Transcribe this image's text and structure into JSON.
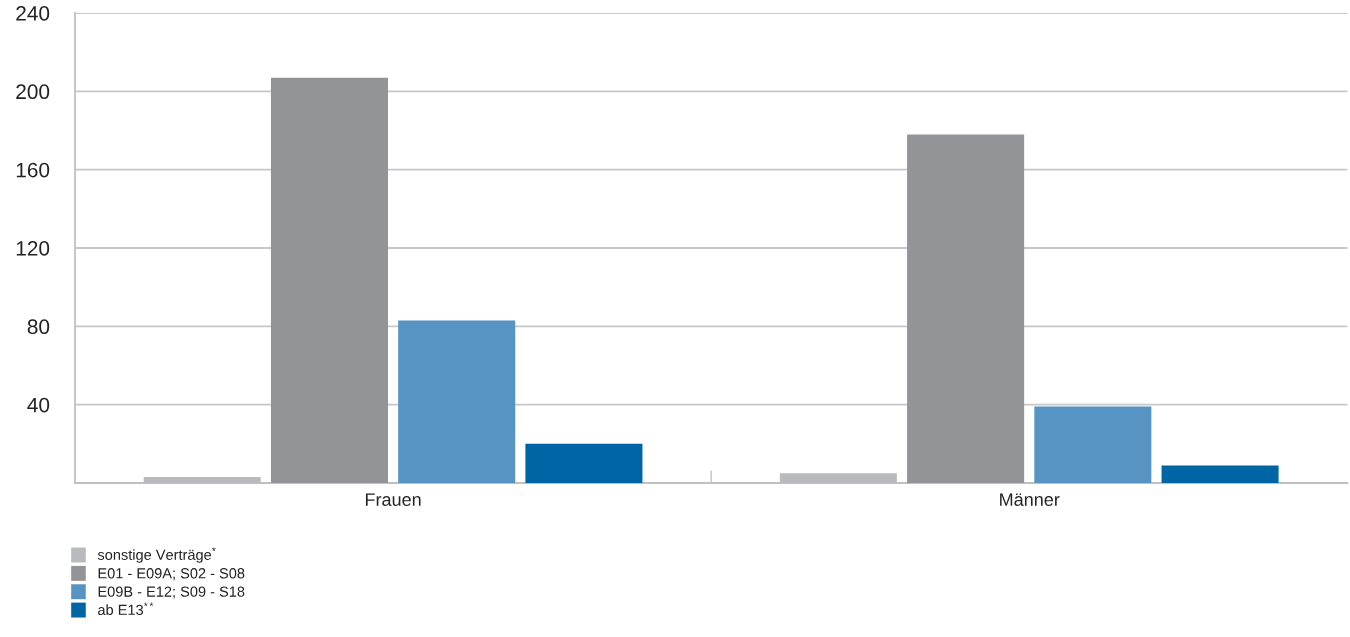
{
  "chart_data": {
    "type": "bar",
    "categories": [
      "Frauen",
      "Männer"
    ],
    "series": [
      {
        "name": "sonstige Verträge$^{*}$",
        "color": "#b9babe",
        "values": [
          3,
          5
        ]
      },
      {
        "name": "E01 - E09A; S02 - S08",
        "color": "#939497",
        "values": [
          207,
          178
        ]
      },
      {
        "name": "E09B - E12; S09 - S18",
        "color": "#5793c3",
        "values": [
          83,
          39
        ]
      },
      {
        "name": "ab E13$^{**}$",
        "color": "#0065a4",
        "values": [
          20,
          9
        ]
      }
    ],
    "ylim": [
      0,
      240
    ],
    "yticks": [
      40,
      80,
      120,
      160,
      200,
      240
    ],
    "grid": "y",
    "legend": "bottom left"
  }
}
